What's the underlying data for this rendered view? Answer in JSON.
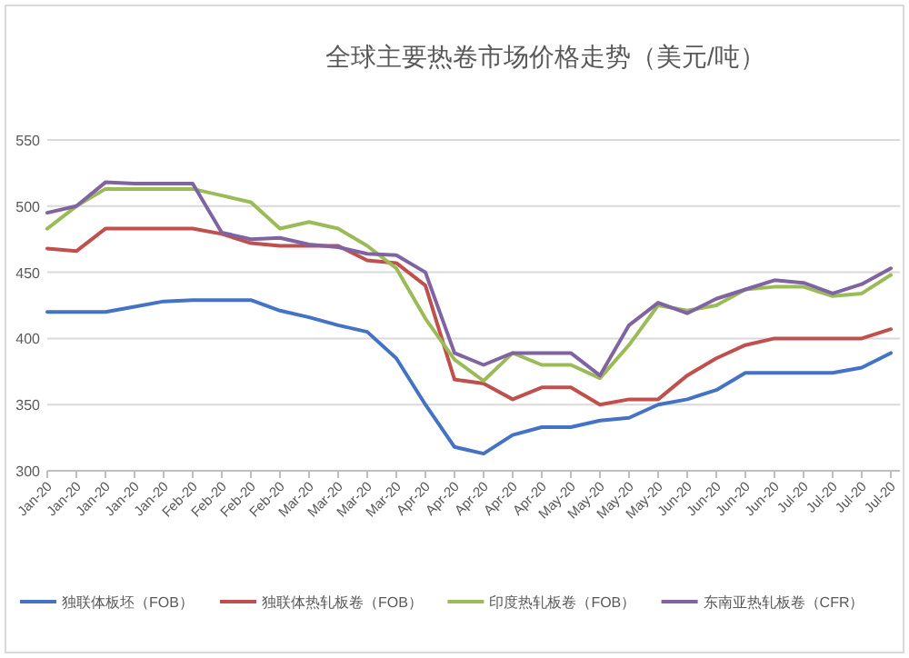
{
  "chart_data": {
    "type": "line",
    "title": "全球主要热卷市场价格走势（美元/吨）",
    "categories": [
      "Jan-20",
      "Jan-20",
      "Jan-20",
      "Jan-20",
      "Jan-20",
      "Feb-20",
      "Feb-20",
      "Feb-20",
      "Feb-20",
      "Mar-20",
      "Mar-20",
      "Mar-20",
      "Mar-20",
      "Apr-20",
      "Apr-20",
      "Apr-20",
      "Apr-20",
      "Apr-20",
      "May-20",
      "May-20",
      "May-20",
      "May-20",
      "Jun-20",
      "Jun-20",
      "Jun-20",
      "Jun-20",
      "Jul-20",
      "Jul-20",
      "Jul-20",
      "Jul-20"
    ],
    "ylim": [
      300,
      550
    ],
    "yticks": [
      300,
      350,
      400,
      450,
      500,
      550
    ],
    "grid": "y",
    "legend": "bottom",
    "marker": "none",
    "line_style": "solid",
    "series": [
      {
        "name": "独联体板坯（FOB）",
        "color": "#4472c4",
        "values": [
          420,
          420,
          420,
          424,
          428,
          429,
          429,
          429,
          421,
          416,
          410,
          405,
          385,
          350,
          318,
          313,
          327,
          333,
          333,
          338,
          340,
          350,
          354,
          361,
          374,
          374,
          374,
          374,
          378,
          389
        ]
      },
      {
        "name": "独联体热轧板卷（FOB）",
        "color": "#c0504d",
        "values": [
          468,
          466,
          483,
          483,
          483,
          483,
          479,
          472,
          470,
          470,
          470,
          459,
          457,
          440,
          369,
          366,
          354,
          363,
          363,
          350,
          354,
          354,
          372,
          385,
          395,
          400,
          400,
          400,
          400,
          407
        ]
      },
      {
        "name": "印度热轧板卷（FOB）",
        "color": "#9bbb59",
        "values": [
          483,
          500,
          513,
          513,
          513,
          513,
          508,
          503,
          483,
          488,
          483,
          470,
          453,
          415,
          384,
          368,
          389,
          380,
          380,
          370,
          395,
          425,
          421,
          425,
          437,
          439,
          439,
          432,
          434,
          448
        ]
      },
      {
        "name": "东南亚热轧板卷（CFR）",
        "color": "#8064a2",
        "values": [
          495,
          500,
          518,
          517,
          517,
          517,
          480,
          475,
          476,
          471,
          469,
          464,
          463,
          450,
          389,
          380,
          389,
          389,
          389,
          372,
          410,
          427,
          419,
          430,
          437,
          444,
          442,
          434,
          441,
          453
        ]
      }
    ]
  }
}
